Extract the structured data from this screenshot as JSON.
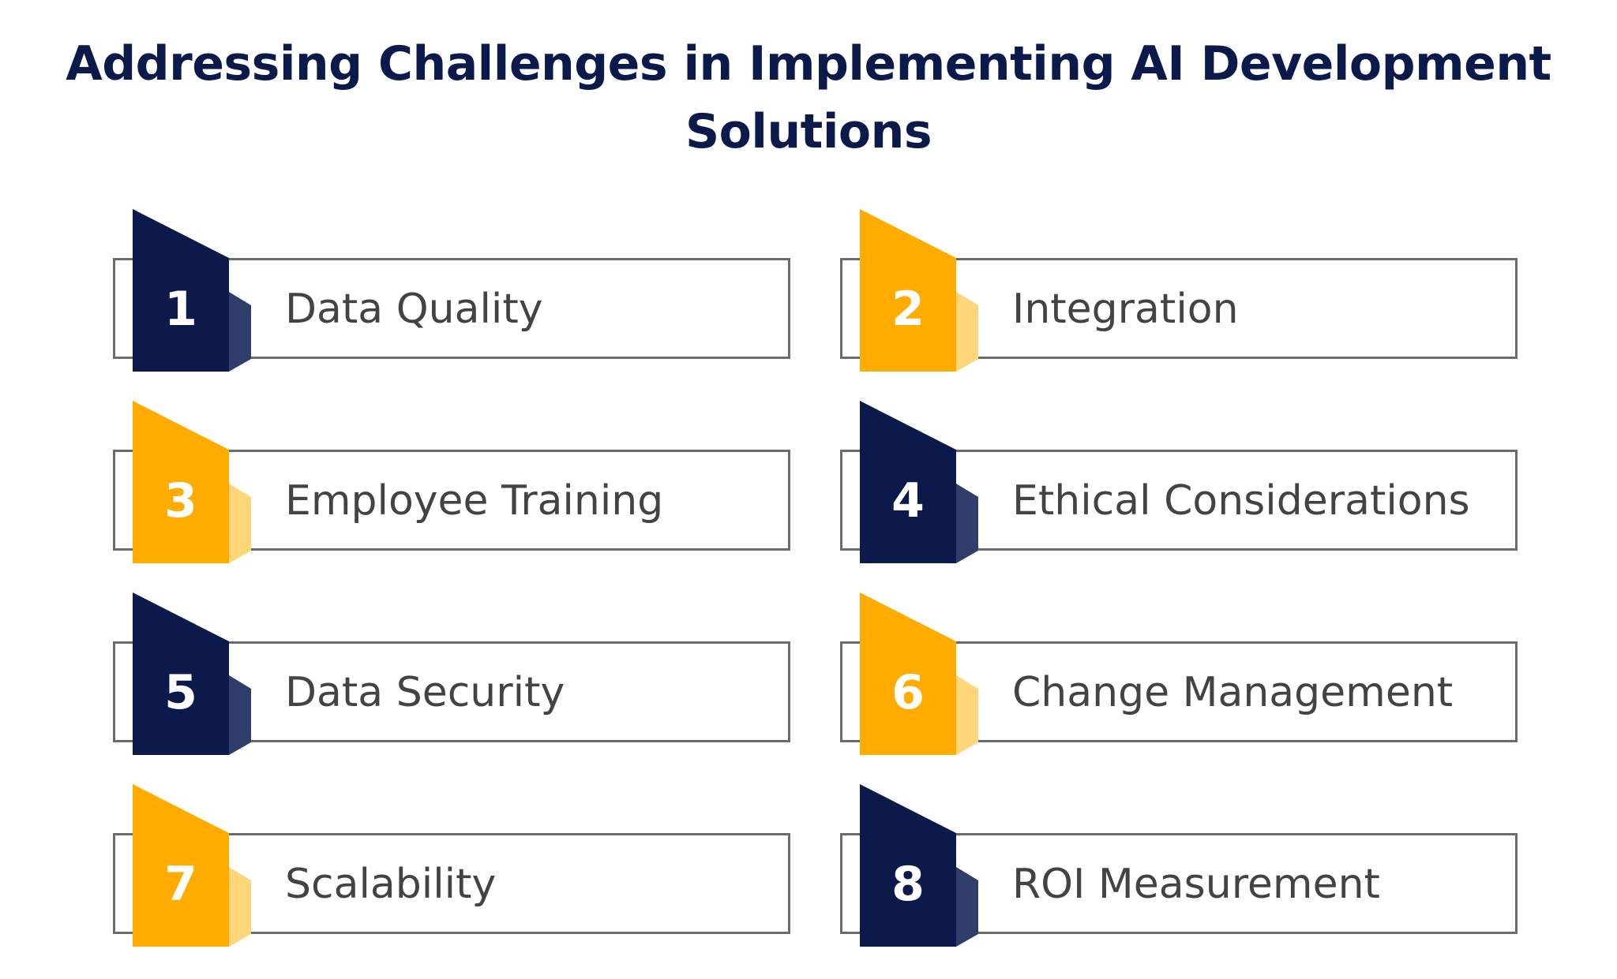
{
  "title": {
    "line1": "Addressing Challenges in Implementing AI Development",
    "line2": "Solutions"
  },
  "colors": {
    "navy": "#0b1a4b",
    "navy_light": "#2f3d6b",
    "gold": "#ffab00",
    "gold_light": "#ffd57a",
    "border": "#6b6b6b",
    "text": "#434343"
  },
  "items": [
    {
      "number": "1",
      "label": "Data Quality",
      "color": "navy"
    },
    {
      "number": "2",
      "label": "Integration",
      "color": "gold"
    },
    {
      "number": "3",
      "label": "Employee Training",
      "color": "gold"
    },
    {
      "number": "4",
      "label": "Ethical Considerations",
      "color": "navy"
    },
    {
      "number": "5",
      "label": "Data Security",
      "color": "navy"
    },
    {
      "number": "6",
      "label": "Change Management",
      "color": "gold"
    },
    {
      "number": "7",
      "label": "Scalability",
      "color": "gold"
    },
    {
      "number": "8",
      "label": "ROI Measurement",
      "color": "navy"
    }
  ]
}
